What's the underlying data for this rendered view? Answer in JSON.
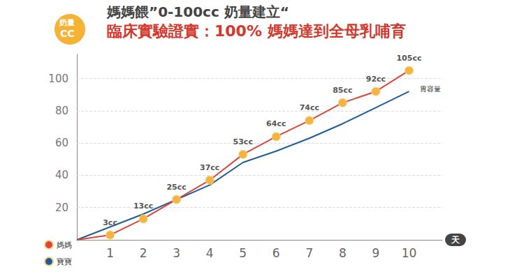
{
  "chart_data": {
    "type": "line",
    "title": "媽媽餵”0-100cc 奶量建立“",
    "subtitle": "臨床實驗證實：100% 媽媽達到全母乳哺育",
    "ylabel": "奶量\nCC",
    "xlabel": "天",
    "x": [
      0,
      1,
      2,
      3,
      4,
      5,
      6,
      7,
      8,
      9,
      10
    ],
    "series": [
      {
        "name": "媽媽",
        "color": "#d9473a",
        "marker": "circle",
        "values": [
          0,
          3,
          13,
          25,
          37,
          53,
          64,
          74,
          85,
          92,
          105
        ],
        "value_labels": [
          null,
          "3cc",
          "13cc",
          "25cc",
          "37cc",
          "53cc",
          "64cc",
          "74cc",
          "85cc",
          "92cc",
          "105cc"
        ]
      },
      {
        "name": "寶寶",
        "color": "#1f5c99",
        "values": [
          0,
          8,
          16,
          25,
          34,
          48,
          55,
          63,
          72,
          82,
          92
        ]
      }
    ],
    "annotations": [
      {
        "text": "胃容量",
        "series": "寶寶"
      }
    ],
    "xlim": [
      0,
      11
    ],
    "xticks": [
      1,
      2,
      3,
      4,
      5,
      6,
      7,
      8,
      9,
      10
    ],
    "ylim": [
      0,
      115
    ],
    "yticks": [
      20,
      40,
      60,
      80,
      100
    ],
    "grid": true,
    "legend": "bottom-left",
    "data_labels": true
  }
}
